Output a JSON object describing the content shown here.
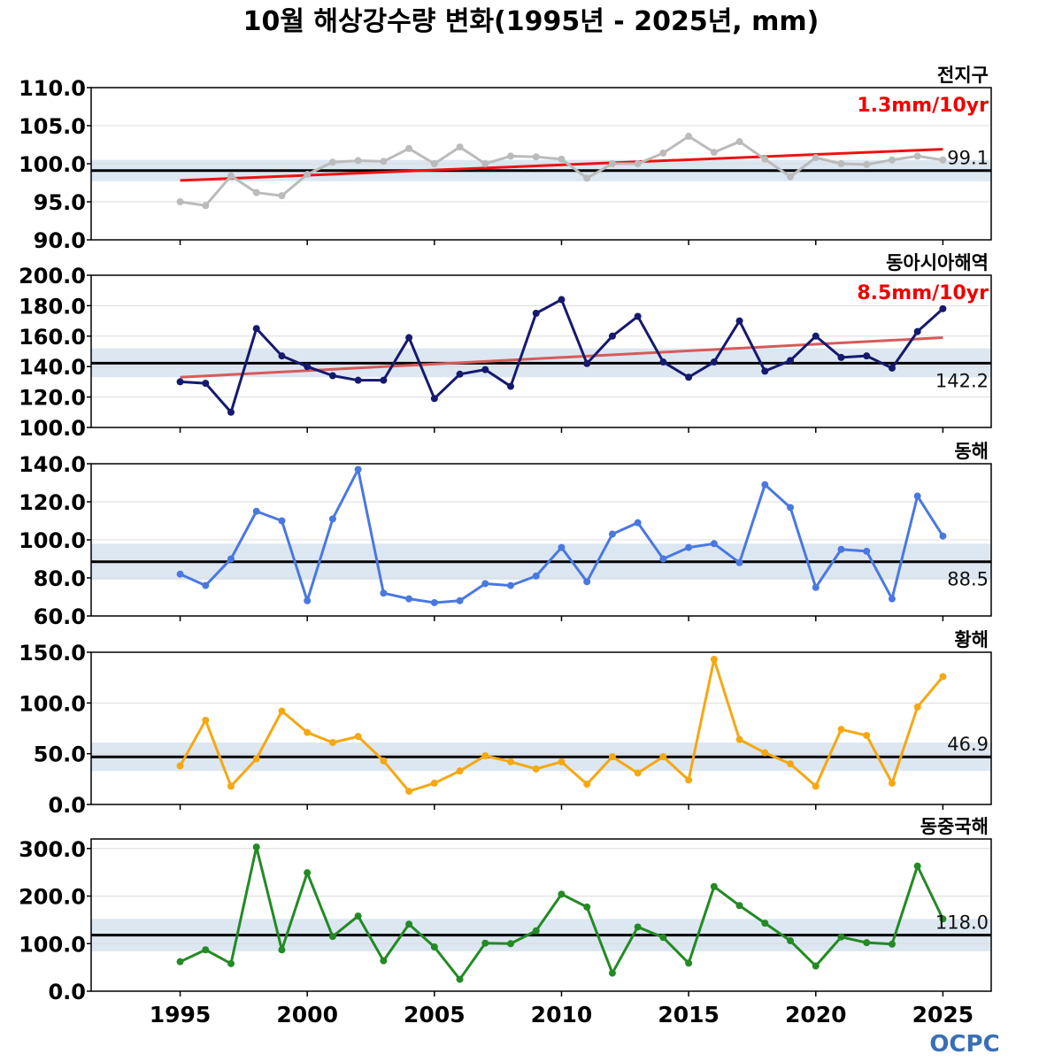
{
  "title": "10월 해상강수량 변화(1995년 - 2025년, mm)",
  "logo": "OCPC",
  "chart_data": {
    "type": "line",
    "x": [
      1995,
      1996,
      1997,
      1998,
      1999,
      2000,
      2001,
      2002,
      2003,
      2004,
      2005,
      2006,
      2007,
      2008,
      2009,
      2010,
      2011,
      2012,
      2013,
      2014,
      2015,
      2016,
      2017,
      2018,
      2019,
      2020,
      2021,
      2022,
      2023,
      2024,
      2025
    ],
    "xticks": [
      "1995",
      "2000",
      "2005",
      "2010",
      "2015",
      "2020",
      "2025"
    ],
    "xlim": [
      1991.5,
      2026.9
    ],
    "panels": [
      {
        "name": "전지구",
        "color": "#bbbbbb",
        "ylim": [
          90,
          110
        ],
        "yticks": [
          "110.0",
          "105.0",
          "100.0",
          "95.0",
          "90.0"
        ],
        "mean": 99.1,
        "mean_label": "99.1",
        "band": [
          97.7,
          100.5
        ],
        "trend_label": "1.3mm/10yr",
        "trend_line": [
          97.8,
          101.9
        ],
        "values": [
          95.0,
          94.5,
          98.4,
          96.2,
          95.8,
          98.6,
          100.2,
          100.4,
          100.3,
          102.0,
          100.0,
          102.2,
          100.0,
          101.0,
          100.9,
          100.6,
          98.1,
          100.0,
          100.0,
          101.4,
          103.6,
          101.5,
          102.9,
          100.6,
          98.3,
          100.8,
          100.0,
          99.9,
          100.5,
          101.0,
          100.5
        ]
      },
      {
        "name": "동아시아해역",
        "color": "#151a6e",
        "ylim": [
          100,
          200
        ],
        "yticks": [
          "200.0",
          "180.0",
          "160.0",
          "140.0",
          "120.0",
          "100.0"
        ],
        "mean": 142.2,
        "mean_label": "142.2",
        "band": [
          133,
          152
        ],
        "trend_label": "8.5mm/10yr",
        "trend_line": [
          133,
          159
        ],
        "values": [
          130,
          129,
          110,
          165,
          147,
          140,
          134,
          131,
          131,
          159,
          119,
          135,
          138,
          127,
          175,
          184,
          142,
          160,
          173,
          143,
          133,
          143,
          170,
          137,
          144,
          160,
          146,
          147,
          139,
          163,
          178
        ]
      },
      {
        "name": "동해",
        "color": "#4a78e0",
        "ylim": [
          60,
          140
        ],
        "yticks": [
          "140.0",
          "120.0",
          "100.0",
          "80.0",
          "60.0"
        ],
        "mean": 88.5,
        "mean_label": "88.5",
        "band": [
          79,
          98
        ],
        "values": [
          82,
          76,
          90,
          115,
          110,
          68,
          111,
          137,
          72,
          69,
          67,
          68,
          77,
          76,
          81,
          96,
          78,
          103,
          109,
          90,
          96,
          98,
          88,
          129,
          117,
          75,
          95,
          94,
          69,
          123,
          102
        ]
      },
      {
        "name": "황해",
        "color": "#f5a812",
        "ylim": [
          0,
          150
        ],
        "yticks": [
          "150.0",
          "100.0",
          "50.0",
          "0.0"
        ],
        "mean": 46.9,
        "mean_label": "46.9",
        "band": [
          33,
          61
        ],
        "values": [
          38,
          83,
          18,
          45,
          92,
          71,
          61,
          67,
          43,
          13,
          21,
          33,
          48,
          42,
          35,
          42,
          20,
          47,
          31,
          47,
          24,
          143,
          64,
          51,
          40,
          18,
          74,
          68,
          21,
          96,
          126
        ]
      },
      {
        "name": "동중국해",
        "color": "#238a24",
        "ylim": [
          0,
          320
        ],
        "yticks": [
          "300.0",
          "200.0",
          "100.0",
          "0.0"
        ],
        "mean": 118.0,
        "mean_label": "118.0",
        "band": [
          84,
          152
        ],
        "values": [
          62,
          87,
          58,
          303,
          87,
          249,
          115,
          158,
          64,
          141,
          93,
          25,
          101,
          100,
          127,
          204,
          177,
          38,
          135,
          113,
          59,
          220,
          180,
          143,
          106,
          53,
          114,
          102,
          99,
          263,
          152
        ]
      }
    ]
  }
}
